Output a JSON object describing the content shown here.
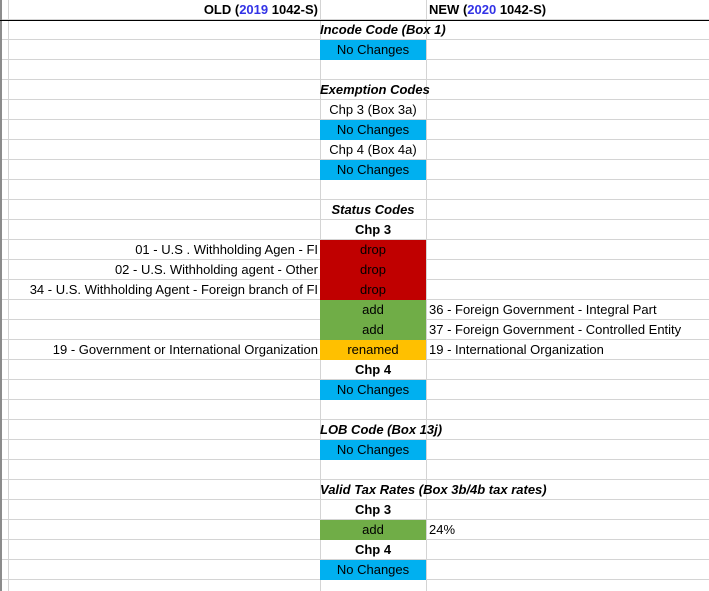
{
  "colors": {
    "no_change_fill": "#00B0F0",
    "drop_fill": "#C00000",
    "add_fill": "#70AD47",
    "renamed_fill": "#FFC000",
    "year_text": "#3333E6",
    "gridline": "#D4D4D4",
    "header_border": "#000000"
  },
  "header": {
    "old": {
      "prefix": "OLD (",
      "year": "2019",
      "suffix": " 1042-S)"
    },
    "new": {
      "prefix": "NEW (",
      "year": "2020",
      "suffix": " 1042-S)"
    }
  },
  "rows": [
    {
      "type": "header"
    },
    {
      "type": "section",
      "mid": "Incode Code (Box 1)"
    },
    {
      "type": "nochange",
      "mid": "No Changes"
    },
    {
      "type": "empty"
    },
    {
      "type": "section",
      "mid": "Exemption Codes"
    },
    {
      "type": "label",
      "mid": "Chp 3 (Box 3a)"
    },
    {
      "type": "nochange",
      "mid": "No Changes"
    },
    {
      "type": "label",
      "mid": "Chp 4 (Box 4a)"
    },
    {
      "type": "nochange",
      "mid": "No Changes"
    },
    {
      "type": "empty"
    },
    {
      "type": "section",
      "mid": "Status Codes"
    },
    {
      "type": "chp",
      "mid": "Chp 3"
    },
    {
      "type": "drop",
      "left": "01 - U.S . Withholding Agen - FI",
      "mid": "drop"
    },
    {
      "type": "drop",
      "left": "02 - U.S. Withholding agent - Other",
      "mid": "drop"
    },
    {
      "type": "drop",
      "left": "34 - U.S. Withholding Agent - Foreign branch of FI",
      "mid": "drop"
    },
    {
      "type": "add",
      "mid": "add",
      "right": "36 - Foreign Government - Integral Part"
    },
    {
      "type": "add",
      "mid": "add",
      "right": "37 - Foreign Government - Controlled Entity"
    },
    {
      "type": "renamed",
      "left": "19 - Government or International Organization",
      "mid": "renamed",
      "right": "19 - International Organization"
    },
    {
      "type": "chp",
      "mid": "Chp 4"
    },
    {
      "type": "nochange",
      "mid": "No Changes"
    },
    {
      "type": "empty"
    },
    {
      "type": "section",
      "mid": "LOB Code (Box 13j)"
    },
    {
      "type": "nochange",
      "mid": "No Changes"
    },
    {
      "type": "empty"
    },
    {
      "type": "section",
      "mid": "Valid Tax Rates (Box 3b/4b tax rates)"
    },
    {
      "type": "chp",
      "mid": "Chp 3"
    },
    {
      "type": "add",
      "mid": "add",
      "right": "24%"
    },
    {
      "type": "chp",
      "mid": "Chp 4"
    },
    {
      "type": "nochange",
      "mid": "No Changes"
    },
    {
      "type": "empty"
    }
  ]
}
